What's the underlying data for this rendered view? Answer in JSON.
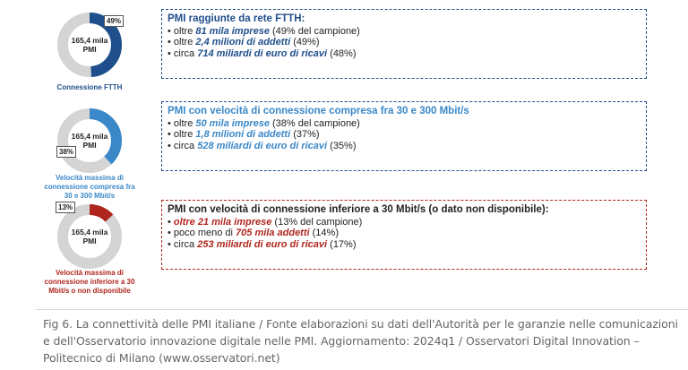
{
  "colors": {
    "navy": "#1f4e8c",
    "lightblue": "#3a88c8",
    "red": "#b0261e",
    "ring_gray": "#d4d4d4"
  },
  "chart_data": [
    {
      "type": "pie",
      "center_label": "165,4 mila PMI",
      "badge": "49%",
      "values": [
        49,
        51
      ],
      "color": "#1f4e8c",
      "caption": "Connessione FTTH"
    },
    {
      "type": "pie",
      "center_label": "165,4 mila PMI",
      "badge": "38%",
      "values": [
        38,
        62
      ],
      "color": "#3a88c8",
      "caption": "Velocità massima di connessione compresa fra 30 e 300 Mbit/s"
    },
    {
      "type": "pie",
      "center_label": "165,4 mila PMI",
      "badge": "13%",
      "values": [
        13,
        87
      ],
      "color": "#b0261e",
      "caption": "Velocità massima di connessione inferiore a 30 Mbit/s o non disponibile"
    }
  ],
  "donuts": [
    {
      "center_l1": "165,4 mila",
      "center_l2": "PMI",
      "badge": "49%",
      "caption_lines": [
        "Connessione FTTH"
      ]
    },
    {
      "center_l1": "165,4 mila",
      "center_l2": "PMI",
      "badge": "38%",
      "caption_lines": [
        "Velocità massima di",
        "connessione compresa fra",
        "30 e 300 Mbit/s"
      ]
    },
    {
      "center_l1": "165,4 mila",
      "center_l2": "PMI",
      "badge": "13%",
      "caption_lines": [
        "Velocità massima di",
        "connessione inferiore a 30",
        "Mbit/s o non disponibile"
      ]
    }
  ],
  "boxes": [
    {
      "title": "PMI raggiunte da rete FTTH:",
      "items": [
        {
          "pre": "oltre ",
          "em": "81 mila imprese",
          "post": " (49% del campione)"
        },
        {
          "pre": "oltre ",
          "em": "2,4 milioni di addetti",
          "post": " (49%)"
        },
        {
          "pre": "circa ",
          "em": "714 miliardi di euro di ricavi",
          "post": " (48%)"
        }
      ]
    },
    {
      "title": "PMI con velocità di connessione compresa fra 30 e 300 Mbit/s",
      "items": [
        {
          "pre": "oltre ",
          "em": "50 mila imprese",
          "post": " (38% del campione)"
        },
        {
          "pre": "oltre ",
          "em": "1,8 milioni di addetti",
          "post": " (37%)"
        },
        {
          "pre": "circa ",
          "em": "528 miliardi di euro di ricavi",
          "post": " (35%)"
        }
      ]
    },
    {
      "title": "PMI con velocità di connessione inferiore a 30 Mbit/s (o dato non disponibile):",
      "items": [
        {
          "pre": "",
          "em": "oltre 21 mila imprese",
          "post": " (13% del campione)"
        },
        {
          "pre": "poco meno di ",
          "em": "705 mila addetti",
          "post": " (14%)"
        },
        {
          "pre": "circa ",
          "em": "253 miliardi di euro di ricavi",
          "post": " (17%)"
        }
      ]
    }
  ],
  "caption": "Fig 6. La connettività delle PMI italiane / Fonte elaborazioni su dati dell'Autorità per le garanzie nelle comunicazioni e dell'Osservatorio innovazione digitale nelle PMI. Aggiornamento: 2024q1 / Osservatori Digital Innovation – Politecnico di Milano (www.osservatori.net)"
}
